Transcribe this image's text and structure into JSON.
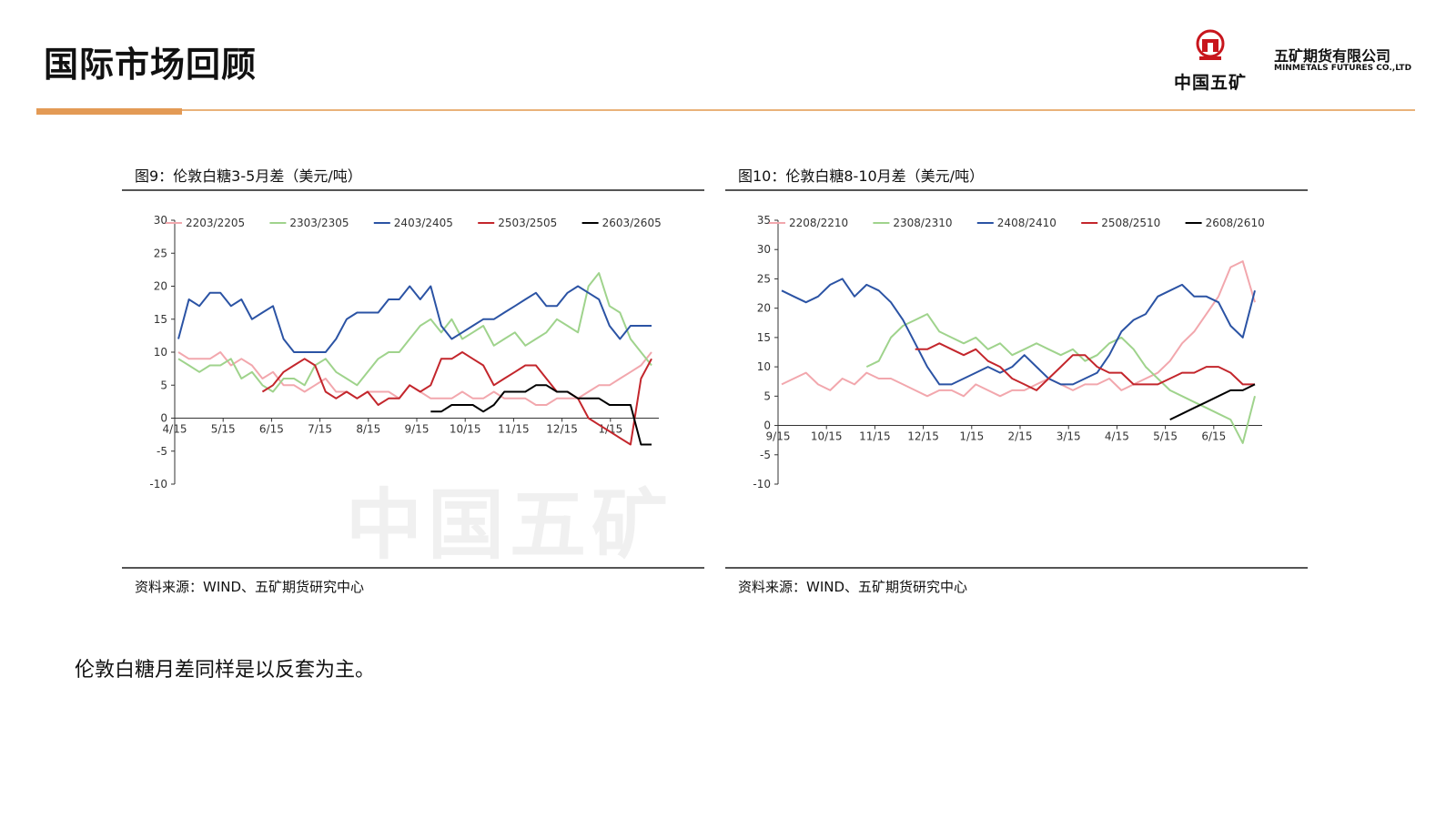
{
  "page": {
    "title": "国际市场回顾",
    "logo_text": "中国五矿",
    "company_cn": "五矿期货有限公司",
    "company_en": "MINMETALS FUTURES CO.,LTD",
    "body_text": "伦敦白糖月差同样是以反套为主。",
    "watermark": "中国五矿",
    "colors": {
      "accent": "#e39a55",
      "rule": "#e9b27a",
      "logo_red": "#c8161d"
    }
  },
  "chart_data": [
    {
      "type": "line",
      "title": "图9：伦敦白糖3-5月差（美元/吨）",
      "source": "资料来源：WIND、五矿期货研究中心",
      "x_ticks": [
        "4/15",
        "5/15",
        "6/15",
        "7/15",
        "8/15",
        "9/15",
        "10/15",
        "11/15",
        "12/15",
        "1/15"
      ],
      "ylim": [
        -10,
        30
      ],
      "y_ticks": [
        -10,
        -5,
        0,
        5,
        10,
        15,
        20,
        25,
        30
      ],
      "legend_position": "top",
      "series": [
        {
          "name": "2203/2205",
          "color": "#f2a7ad",
          "values": [
            10,
            9,
            9,
            9,
            10,
            8,
            9,
            8,
            6,
            7,
            5,
            5,
            4,
            5,
            6,
            4,
            4,
            3,
            4,
            4,
            4,
            3,
            5,
            4,
            3,
            3,
            3,
            4,
            3,
            3,
            4,
            3,
            3,
            3,
            2,
            2,
            3,
            3,
            3,
            4,
            5,
            5,
            6,
            7,
            8,
            10
          ]
        },
        {
          "name": "2303/2305",
          "color": "#9fd38c",
          "values": [
            9,
            8,
            7,
            8,
            8,
            9,
            6,
            7,
            5,
            4,
            6,
            6,
            5,
            8,
            9,
            7,
            6,
            5,
            7,
            9,
            10,
            10,
            12,
            14,
            15,
            13,
            15,
            12,
            13,
            14,
            11,
            12,
            13,
            11,
            12,
            13,
            15,
            14,
            13,
            20,
            22,
            17,
            16,
            12,
            10,
            8
          ]
        },
        {
          "name": "2403/2405",
          "color": "#2b53a4",
          "values": [
            12,
            18,
            17,
            19,
            19,
            17,
            18,
            15,
            16,
            17,
            12,
            10,
            10,
            10,
            10,
            12,
            15,
            16,
            16,
            16,
            18,
            18,
            20,
            18,
            20,
            14,
            12,
            13,
            14,
            15,
            15,
            16,
            17,
            18,
            19,
            17,
            17,
            19,
            20,
            19,
            18,
            14,
            12,
            14,
            14,
            14
          ]
        },
        {
          "name": "2503/2505",
          "color": "#c3262c",
          "values": [
            null,
            null,
            null,
            null,
            null,
            null,
            null,
            null,
            4,
            5,
            7,
            8,
            9,
            8,
            4,
            3,
            4,
            3,
            4,
            2,
            3,
            3,
            5,
            4,
            5,
            9,
            9,
            10,
            9,
            8,
            5,
            6,
            7,
            8,
            8,
            6,
            4,
            4,
            3,
            0,
            -1,
            -2,
            -3,
            -4,
            6,
            9
          ]
        },
        {
          "name": "2603/2605",
          "color": "#000000",
          "values": [
            null,
            null,
            null,
            null,
            null,
            null,
            null,
            null,
            null,
            null,
            null,
            null,
            null,
            null,
            null,
            null,
            null,
            null,
            null,
            null,
            null,
            null,
            null,
            null,
            1,
            1,
            2,
            2,
            2,
            1,
            2,
            4,
            4,
            4,
            5,
            5,
            4,
            4,
            3,
            3,
            3,
            2,
            2,
            2,
            -4,
            -4
          ]
        }
      ]
    },
    {
      "type": "line",
      "title": "图10：伦敦白糖8-10月差（美元/吨）",
      "source": "资料来源：WIND、五矿期货研究中心",
      "x_ticks": [
        "9/15",
        "10/15",
        "11/15",
        "12/15",
        "1/15",
        "2/15",
        "3/15",
        "4/15",
        "5/15",
        "6/15"
      ],
      "ylim": [
        -10,
        35
      ],
      "y_ticks": [
        -10,
        -5,
        0,
        5,
        10,
        15,
        20,
        25,
        30,
        35
      ],
      "legend_position": "top",
      "series": [
        {
          "name": "2208/2210",
          "color": "#f2a7ad",
          "values": [
            7,
            8,
            9,
            7,
            6,
            8,
            7,
            9,
            8,
            8,
            7,
            6,
            5,
            6,
            6,
            5,
            7,
            6,
            5,
            6,
            6,
            7,
            8,
            7,
            6,
            7,
            7,
            8,
            6,
            7,
            8,
            9,
            11,
            14,
            16,
            19,
            22,
            27,
            28,
            21
          ]
        },
        {
          "name": "2308/2310",
          "color": "#9fd38c",
          "values": [
            null,
            null,
            null,
            null,
            null,
            null,
            null,
            10,
            11,
            15,
            17,
            18,
            19,
            16,
            15,
            14,
            15,
            13,
            14,
            12,
            13,
            14,
            13,
            12,
            13,
            11,
            12,
            14,
            15,
            13,
            10,
            8,
            6,
            5,
            4,
            3,
            2,
            1,
            -3,
            5
          ]
        },
        {
          "name": "2408/2410",
          "color": "#2b53a4",
          "values": [
            23,
            22,
            21,
            22,
            24,
            25,
            22,
            24,
            23,
            21,
            18,
            14,
            10,
            7,
            7,
            8,
            9,
            10,
            9,
            10,
            12,
            10,
            8,
            7,
            7,
            8,
            9,
            12,
            16,
            18,
            19,
            22,
            23,
            24,
            22,
            22,
            21,
            17,
            15,
            23
          ]
        },
        {
          "name": "2508/2510",
          "color": "#c3262c",
          "values": [
            null,
            null,
            null,
            null,
            null,
            null,
            null,
            null,
            null,
            null,
            null,
            13,
            13,
            14,
            13,
            12,
            13,
            11,
            10,
            8,
            7,
            6,
            8,
            10,
            12,
            12,
            10,
            9,
            9,
            7,
            7,
            7,
            8,
            9,
            9,
            10,
            10,
            9,
            7,
            7
          ]
        },
        {
          "name": "2608/2610",
          "color": "#000000",
          "values": [
            null,
            null,
            null,
            null,
            null,
            null,
            null,
            null,
            null,
            null,
            null,
            null,
            null,
            null,
            null,
            null,
            null,
            null,
            null,
            null,
            null,
            null,
            null,
            null,
            null,
            null,
            null,
            null,
            null,
            null,
            null,
            null,
            1,
            2,
            3,
            4,
            5,
            6,
            6,
            7
          ]
        }
      ]
    }
  ]
}
